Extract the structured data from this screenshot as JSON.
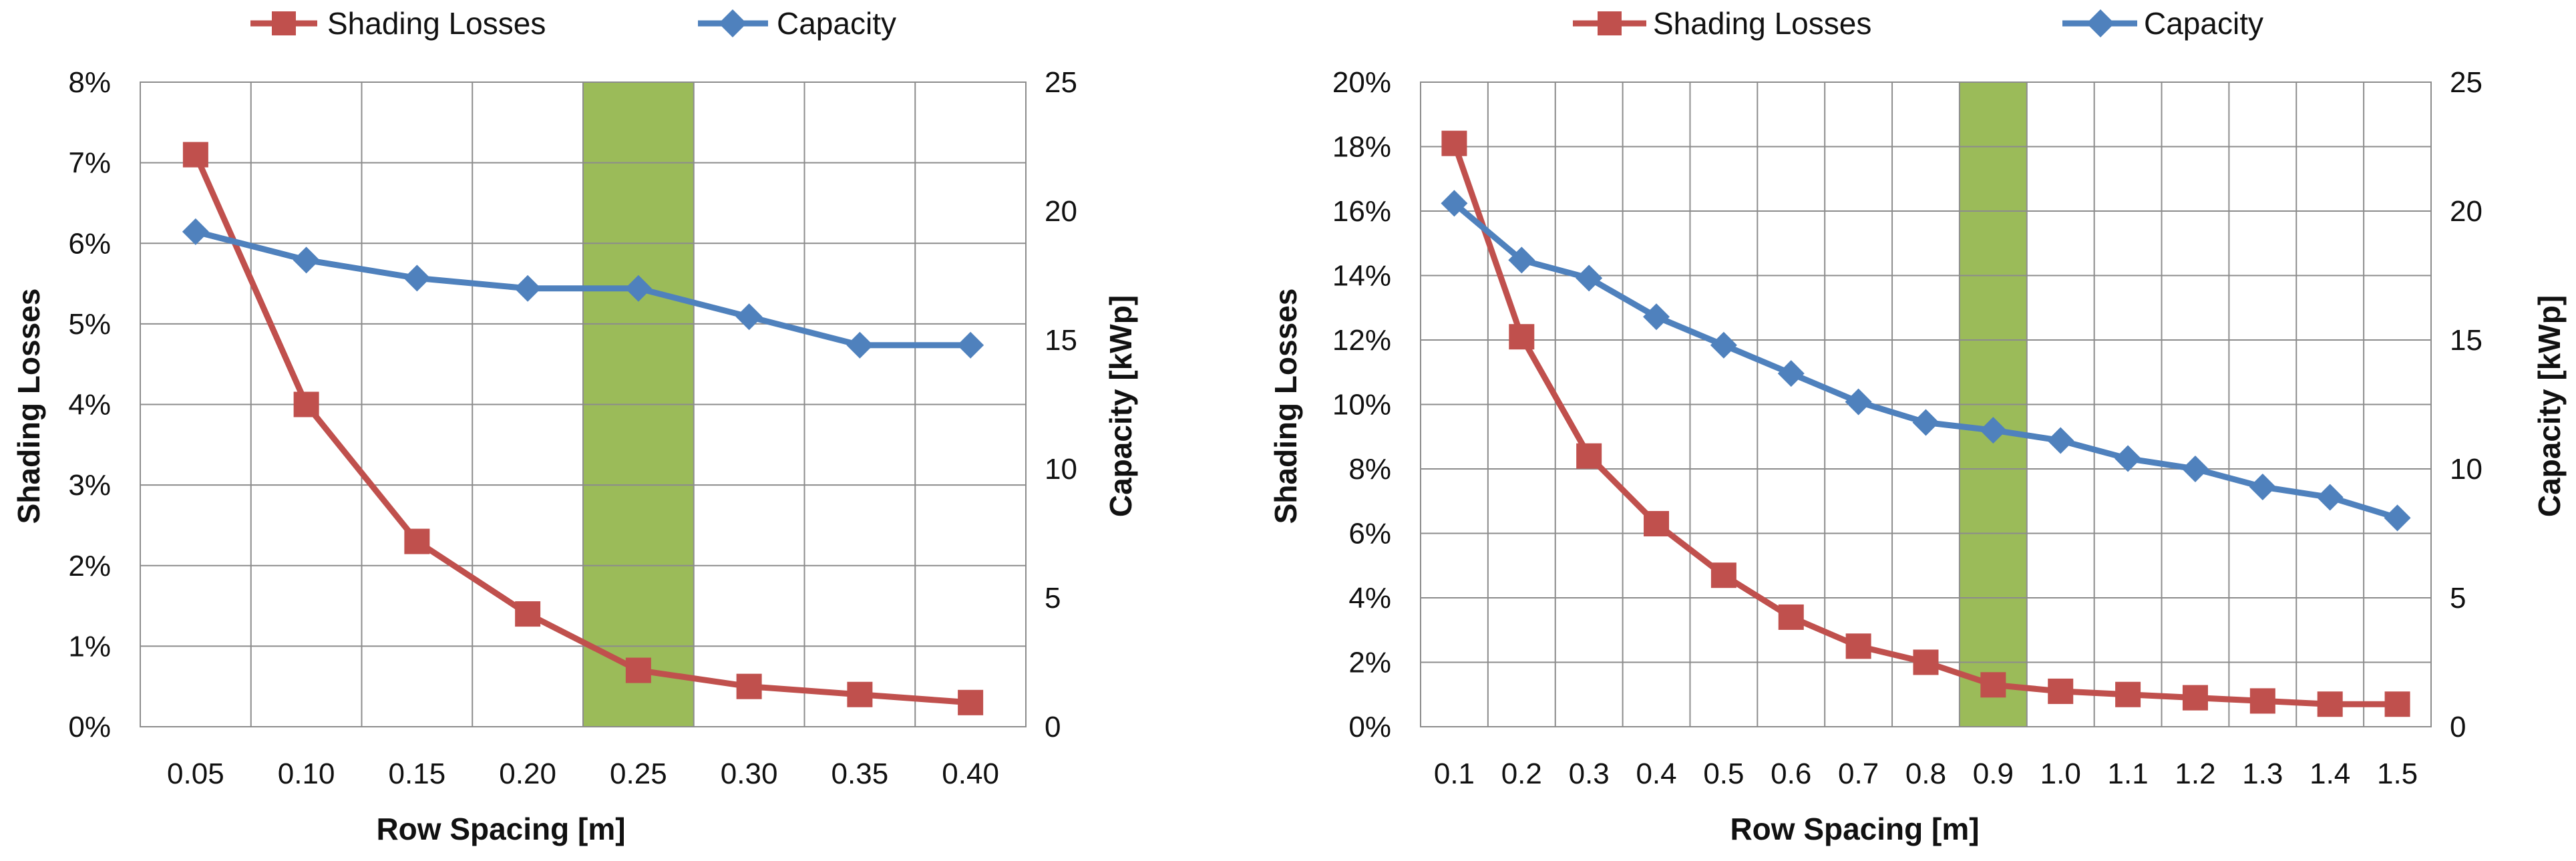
{
  "chart_data": [
    {
      "type": "line",
      "categories": [
        "0.05",
        "0.10",
        "0.15",
        "0.20",
        "0.25",
        "0.30",
        "0.35",
        "0.40"
      ],
      "xlabel": "Row Spacing [m]",
      "ylabel": "Shading Losses",
      "y2label": "Capacity [kWp]",
      "ylim": [
        0,
        8
      ],
      "y_ticks": [
        "0%",
        "1%",
        "2%",
        "3%",
        "4%",
        "5%",
        "6%",
        "7%",
        "8%"
      ],
      "y2lim": [
        0,
        25
      ],
      "y2_ticks": [
        "0",
        "5",
        "10",
        "15",
        "20",
        "25"
      ],
      "grid": true,
      "highlight_category": "0.25",
      "series": [
        {
          "name": "Shading Losses",
          "axis": "left",
          "unit": "%",
          "color": "#c0504d",
          "marker": "square",
          "values": [
            7.1,
            4.0,
            2.3,
            1.4,
            0.7,
            0.5,
            0.4,
            0.3
          ]
        },
        {
          "name": "Capacity",
          "axis": "right",
          "unit": "kWp",
          "color": "#4f81bd",
          "marker": "diamond",
          "values": [
            19.2,
            18.1,
            17.4,
            17.0,
            17.0,
            15.9,
            14.8,
            14.8
          ]
        }
      ]
    },
    {
      "type": "line",
      "categories": [
        "0.1",
        "0.2",
        "0.3",
        "0.4",
        "0.5",
        "0.6",
        "0.7",
        "0.8",
        "0.9",
        "1.0",
        "1.1",
        "1.2",
        "1.3",
        "1.4",
        "1.5"
      ],
      "xlabel": "Row Spacing [m]",
      "ylabel": "Shading Losses",
      "y2label": "Capacity [kWp]",
      "ylim": [
        0,
        20
      ],
      "y_ticks": [
        "0%",
        "2%",
        "4%",
        "6%",
        "8%",
        "10%",
        "12%",
        "14%",
        "16%",
        "18%",
        "20%"
      ],
      "y2lim": [
        0,
        25
      ],
      "y2_ticks": [
        "0",
        "5",
        "10",
        "15",
        "20",
        "25"
      ],
      "grid": true,
      "highlight_category": "0.9",
      "series": [
        {
          "name": "Shading Losses",
          "axis": "left",
          "unit": "%",
          "color": "#c0504d",
          "marker": "square",
          "values": [
            18.1,
            12.1,
            8.4,
            6.3,
            4.7,
            3.4,
            2.5,
            2.0,
            1.3,
            1.1,
            1.0,
            0.9,
            0.8,
            0.7,
            0.7
          ]
        },
        {
          "name": "Capacity",
          "axis": "right",
          "unit": "kWp",
          "color": "#4f81bd",
          "marker": "diamond",
          "values": [
            20.3,
            18.1,
            17.4,
            15.9,
            14.8,
            13.7,
            12.6,
            11.8,
            11.5,
            11.1,
            10.4,
            10.0,
            9.3,
            8.9,
            8.1
          ]
        }
      ]
    }
  ],
  "legend": {
    "shading_label": "Shading Losses",
    "capacity_label": "Capacity"
  },
  "colors": {
    "highlight": "#9bbb59",
    "grid": "#8c8c8c",
    "shading": "#c0504d",
    "capacity": "#4f81bd"
  }
}
